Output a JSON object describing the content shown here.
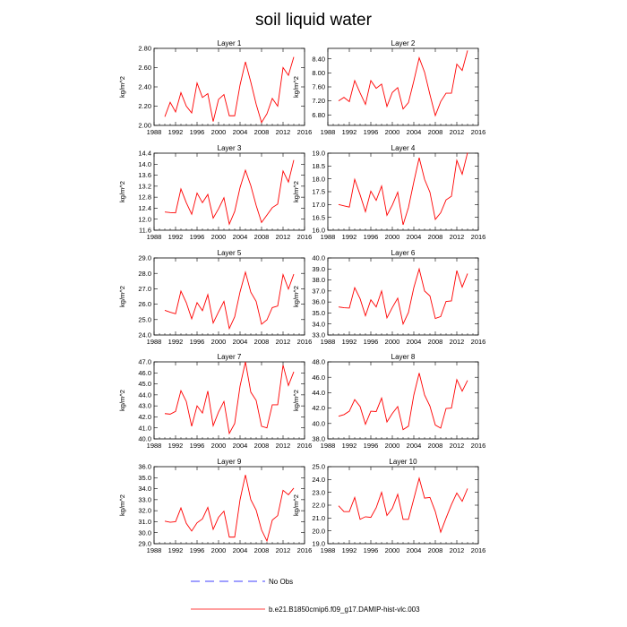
{
  "chart_data": {
    "title": "soil liquid water",
    "type": "line",
    "grid": false,
    "legend_placement": "bottom-center",
    "series_color": "#ff0000",
    "nobs_color": "#0000ff",
    "legend": [
      "No Obs",
      "b.e21.B1850cmip6.f09_g17.DAMIP-hist-vlc.003"
    ],
    "xlim": [
      1988,
      2016
    ],
    "xticks": [
      1988,
      1992,
      1996,
      2000,
      2004,
      2008,
      2012,
      2016
    ],
    "x": [
      1990,
      1991,
      1992,
      1993,
      1994,
      1995,
      1996,
      1997,
      1998,
      1999,
      2000,
      2001,
      2002,
      2003,
      2004,
      2005,
      2006,
      2007,
      2008,
      2009,
      2010,
      2011,
      2012,
      2013,
      2014
    ],
    "panels": [
      {
        "title": "Layer 1",
        "ylabel": "kg/m^2",
        "ylim": [
          2.0,
          2.8
        ],
        "yticks": [
          "2.00",
          "2.20",
          "2.40",
          "2.60",
          "2.80"
        ],
        "values": [
          2.09,
          2.24,
          2.14,
          2.34,
          2.2,
          2.13,
          2.44,
          2.29,
          2.33,
          2.04,
          2.27,
          2.32,
          2.1,
          2.1,
          2.42,
          2.66,
          2.45,
          2.22,
          2.03,
          2.12,
          2.28,
          2.2,
          2.6,
          2.52,
          2.71
        ]
      },
      {
        "title": "Layer 2",
        "ylabel": "kg/m^2",
        "ylim": [
          6.5,
          8.7
        ],
        "yticks": [
          "6.80",
          "7.20",
          "7.60",
          "8.00",
          "8.40"
        ],
        "values": [
          7.2,
          7.3,
          7.18,
          7.78,
          7.43,
          7.1,
          7.78,
          7.56,
          7.68,
          7.04,
          7.44,
          7.58,
          6.97,
          7.15,
          7.77,
          8.43,
          8.02,
          7.38,
          6.78,
          7.18,
          7.42,
          7.42,
          8.25,
          8.07,
          8.64
        ]
      },
      {
        "title": "Layer 3",
        "ylabel": "kg/m^2",
        "ylim": [
          11.6,
          14.4
        ],
        "yticks": [
          "11.6",
          "12.0",
          "12.4",
          "12.8",
          "13.2",
          "13.6",
          "14.0",
          "14.4"
        ],
        "values": [
          12.26,
          12.24,
          12.23,
          13.1,
          12.6,
          12.18,
          12.95,
          12.6,
          12.9,
          12.04,
          12.38,
          12.78,
          11.82,
          12.28,
          13.15,
          13.78,
          13.22,
          12.5,
          11.88,
          12.15,
          12.42,
          12.55,
          13.75,
          13.35,
          14.15
        ]
      },
      {
        "title": "Layer 4",
        "ylabel": "kg/m^2",
        "ylim": [
          16.0,
          19.0
        ],
        "yticks": [
          "16.0",
          "16.5",
          "17.0",
          "17.5",
          "18.0",
          "18.5",
          "19.0"
        ],
        "values": [
          17.0,
          16.95,
          16.9,
          17.98,
          17.38,
          16.72,
          17.52,
          17.16,
          17.72,
          16.58,
          16.98,
          17.48,
          16.21,
          16.88,
          17.88,
          18.82,
          17.98,
          17.48,
          16.42,
          16.68,
          17.18,
          17.32,
          18.72,
          18.18,
          19.02
        ]
      },
      {
        "title": "Layer 5",
        "ylabel": "kg/m^2",
        "ylim": [
          24.0,
          29.0
        ],
        "yticks": [
          "24.0",
          "25.0",
          "26.0",
          "27.0",
          "28.0",
          "29.0"
        ],
        "values": [
          25.6,
          25.48,
          25.38,
          26.85,
          26.1,
          25.05,
          26.1,
          25.58,
          26.62,
          24.78,
          25.5,
          26.18,
          24.42,
          25.18,
          26.8,
          28.08,
          26.78,
          26.18,
          24.7,
          24.98,
          25.78,
          25.88,
          27.92,
          26.98,
          27.95
        ]
      },
      {
        "title": "Layer 6",
        "ylabel": "kg/m^2",
        "ylim": [
          33.0,
          40.0
        ],
        "yticks": [
          "33.0",
          "34.0",
          "35.0",
          "36.0",
          "37.0",
          "38.0",
          "39.0",
          "40.0"
        ],
        "values": [
          35.55,
          35.48,
          35.45,
          37.3,
          36.3,
          34.75,
          36.2,
          35.55,
          37.0,
          34.55,
          35.5,
          36.35,
          34.0,
          35.05,
          37.3,
          39.0,
          37.0,
          36.55,
          34.5,
          34.68,
          36.05,
          36.1,
          38.85,
          37.35,
          38.58
        ]
      },
      {
        "title": "Layer 7",
        "ylabel": "kg/m^2",
        "ylim": [
          40.0,
          47.0
        ],
        "yticks": [
          "40.0",
          "41.0",
          "42.0",
          "43.0",
          "44.0",
          "45.0",
          "46.0",
          "47.0"
        ],
        "values": [
          42.3,
          42.25,
          42.5,
          44.38,
          43.4,
          41.15,
          43.0,
          42.35,
          44.35,
          41.2,
          42.45,
          43.4,
          40.5,
          41.4,
          44.8,
          47.0,
          44.25,
          43.5,
          41.15,
          41.0,
          43.1,
          43.1,
          46.7,
          44.85,
          46.1
        ]
      },
      {
        "title": "Layer 8",
        "ylabel": "kg/m^2",
        "ylim": [
          38.0,
          48.0
        ],
        "yticks": [
          "38.0",
          "40.0",
          "42.0",
          "44.0",
          "46.0",
          "48.0"
        ],
        "values": [
          40.95,
          41.15,
          41.6,
          43.1,
          42.2,
          39.9,
          41.6,
          41.55,
          43.3,
          40.2,
          41.3,
          42.2,
          39.2,
          39.65,
          43.7,
          46.55,
          43.7,
          42.25,
          39.8,
          39.4,
          41.95,
          42.0,
          45.7,
          44.2,
          45.6
        ]
      },
      {
        "title": "Layer 9",
        "ylabel": "kg/m^2",
        "ylim": [
          29.0,
          36.0
        ],
        "yticks": [
          "29.0",
          "30.0",
          "31.0",
          "32.0",
          "33.0",
          "34.0",
          "35.0",
          "36.0"
        ],
        "values": [
          31.05,
          30.95,
          31.0,
          32.25,
          30.85,
          30.15,
          30.9,
          31.25,
          32.3,
          30.3,
          31.4,
          31.95,
          29.6,
          29.6,
          33.0,
          35.25,
          33.0,
          32.05,
          30.25,
          29.25,
          31.15,
          31.55,
          33.85,
          33.45,
          34.05
        ]
      },
      {
        "title": "Layer 10",
        "ylabel": "kg/m^2",
        "ylim": [
          19.0,
          25.0
        ],
        "yticks": [
          "19.0",
          "20.0",
          "21.0",
          "22.0",
          "23.0",
          "24.0",
          "25.0"
        ],
        "values": [
          21.95,
          21.5,
          21.5,
          22.6,
          20.9,
          21.1,
          21.05,
          21.8,
          23.0,
          21.2,
          21.75,
          22.85,
          20.9,
          20.9,
          22.5,
          24.1,
          22.55,
          22.6,
          21.5,
          19.9,
          21.0,
          22.05,
          22.95,
          22.3,
          23.3
        ]
      }
    ]
  }
}
